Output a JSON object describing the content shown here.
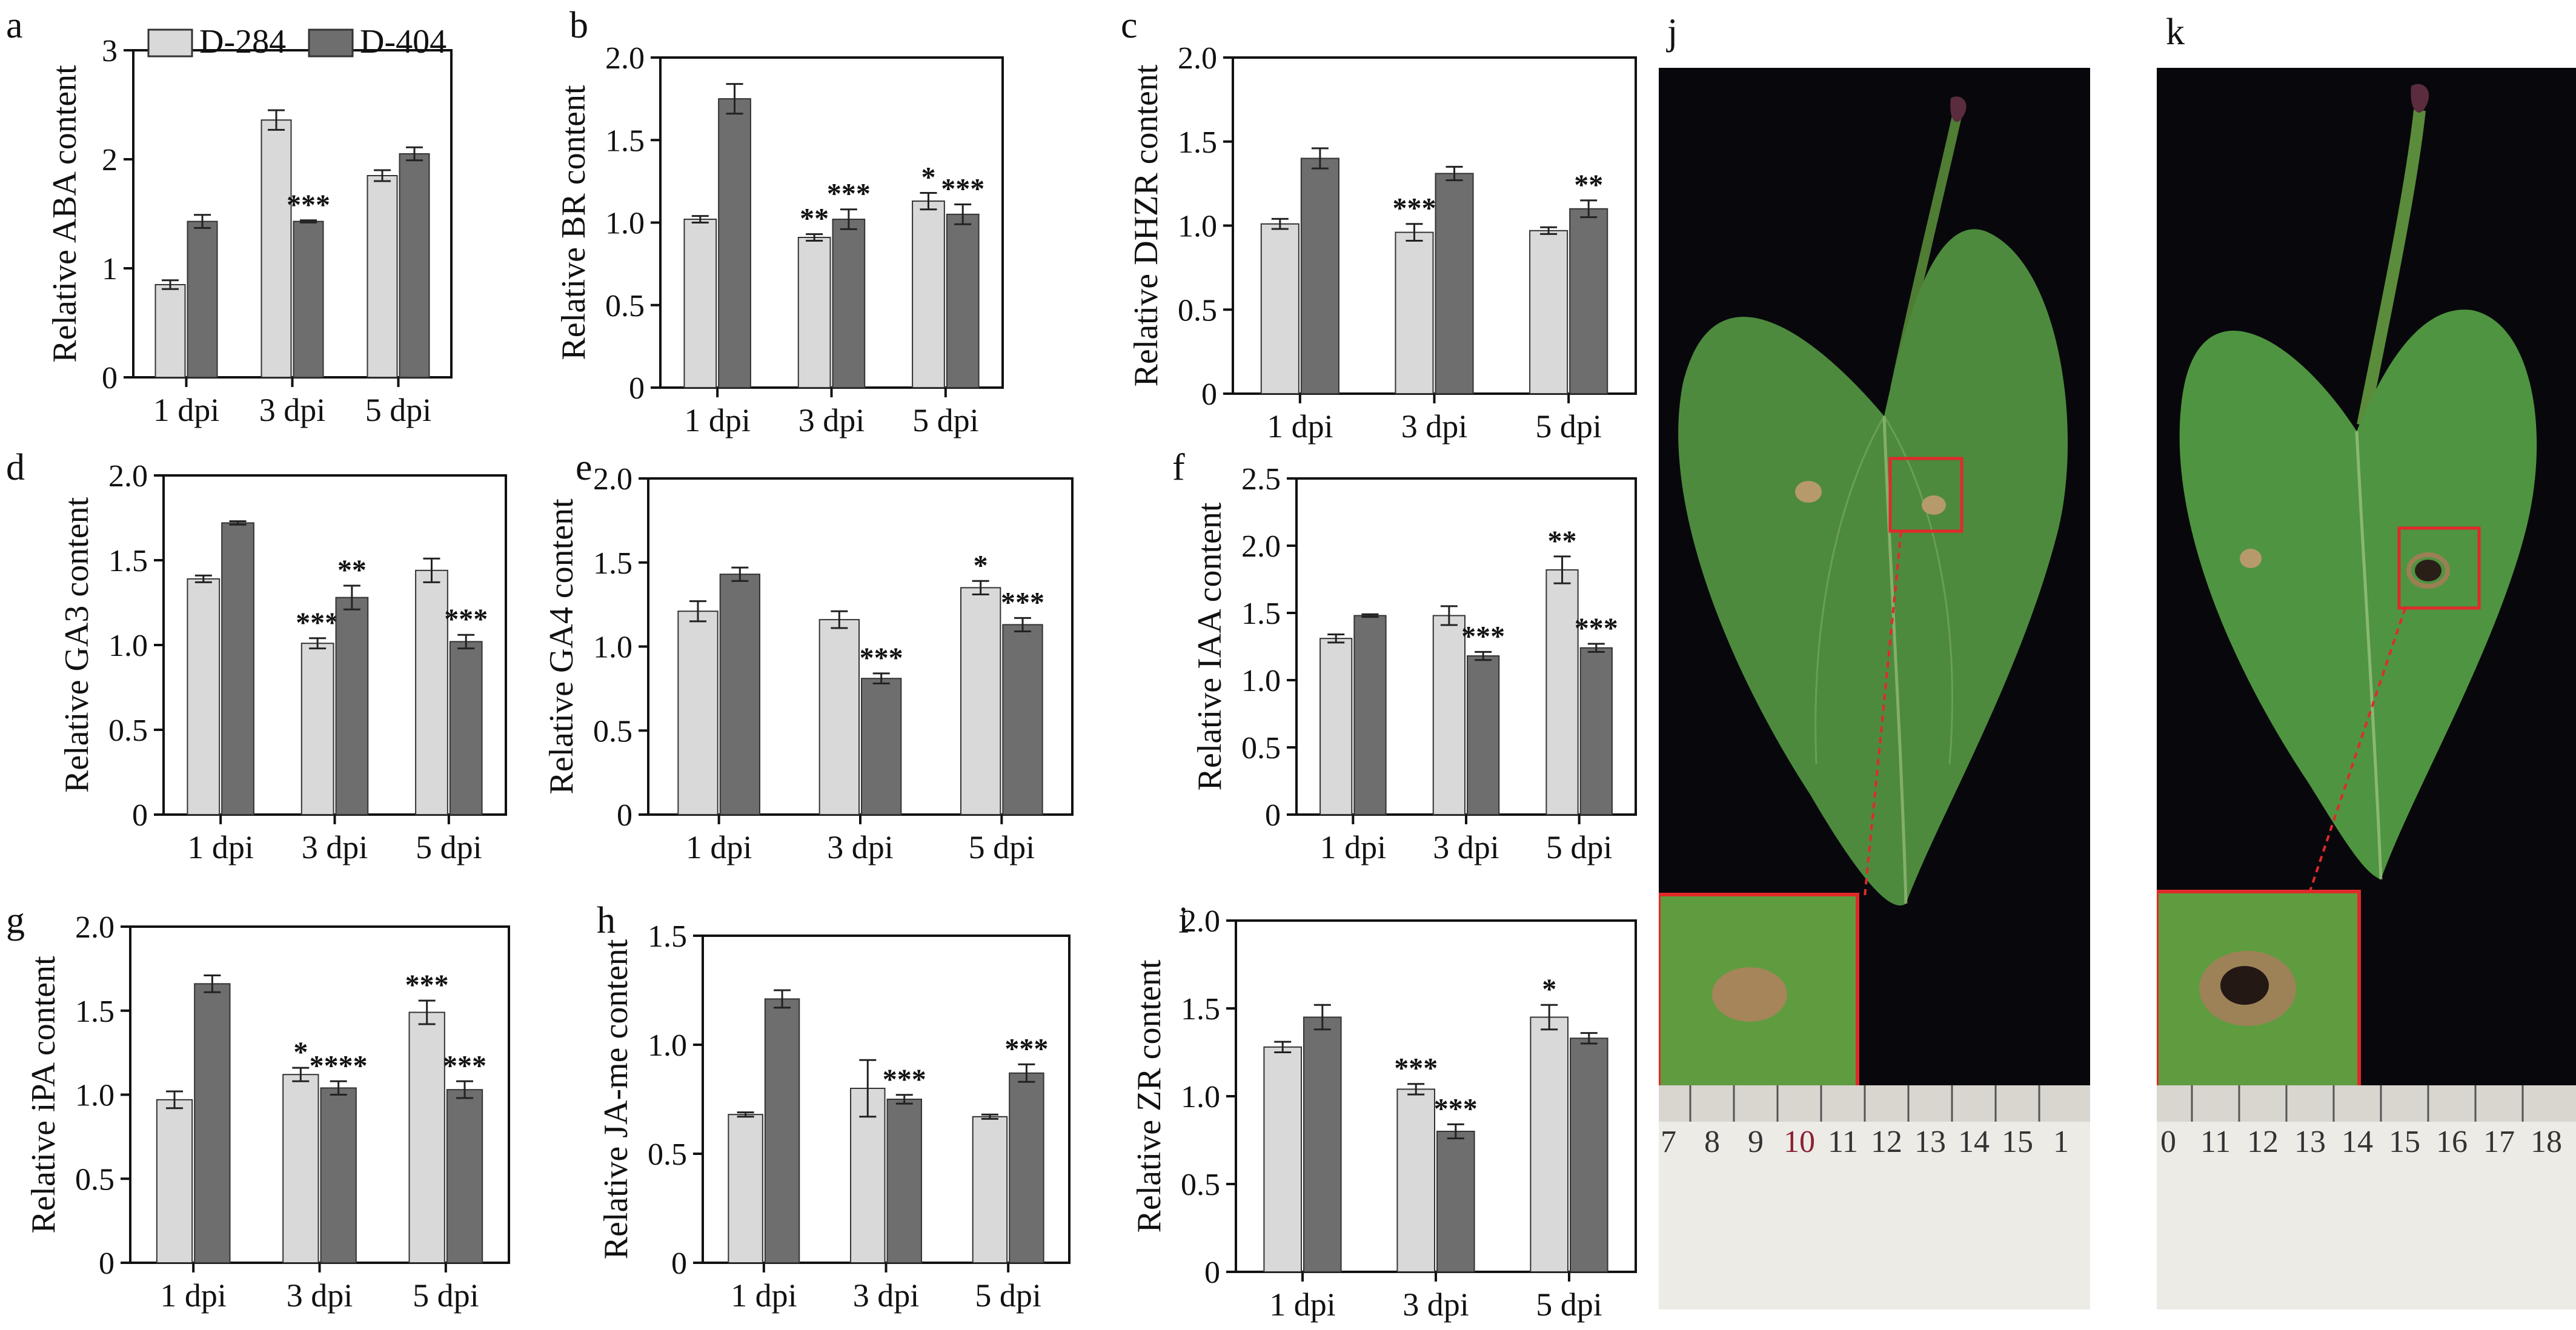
{
  "figure": {
    "legend": [
      {
        "name": "D-284",
        "color": "#d9d9d9"
      },
      {
        "name": "D-404",
        "color": "#6e6e6e"
      }
    ],
    "colors": {
      "d284": "#d9d9d9",
      "d404": "#6e6e6e",
      "axis": "#111111",
      "photo_bg": "#08080c",
      "leaf": "#4d8a3e",
      "frame": "#e02a2a"
    }
  },
  "chart_data": [
    {
      "panel": "a",
      "type": "bar",
      "categories": [
        "1 dpi",
        "3 dpi",
        "5 dpi"
      ],
      "ylabel": "Relative ABA content",
      "ylim": [
        0,
        3
      ],
      "yticks": [
        "0",
        "1",
        "2",
        "3"
      ],
      "yticks_values": [
        0,
        1,
        2,
        3
      ],
      "series": [
        {
          "name": "D-284",
          "values": [
            0.85,
            2.36,
            1.85
          ],
          "errors": [
            0.04,
            0.09,
            0.05
          ]
        },
        {
          "name": "D-404",
          "values": [
            1.43,
            1.43,
            2.05
          ],
          "errors": [
            0.06,
            0.01,
            0.06
          ]
        }
      ],
      "annotations": [
        [
          "",
          "",
          ""
        ],
        [
          "",
          "***",
          "***"
        ],
        [
          "",
          "",
          "***"
        ]
      ],
      "legend": true
    },
    {
      "panel": "b",
      "type": "bar",
      "categories": [
        "1 dpi",
        "3 dpi",
        "5 dpi"
      ],
      "ylabel": "Relative BR content",
      "ylim": [
        0,
        2
      ],
      "yticks": [
        "0",
        "0.5",
        "1.0",
        "1.5",
        "2.0"
      ],
      "yticks_values": [
        0,
        0.5,
        1,
        1.5,
        2
      ],
      "series": [
        {
          "name": "D-284",
          "values": [
            1.02,
            0.91,
            1.13
          ],
          "errors": [
            0.02,
            0.02,
            0.05
          ]
        },
        {
          "name": "D-404",
          "values": [
            1.75,
            1.02,
            1.05
          ],
          "errors": [
            0.09,
            0.06,
            0.06
          ]
        }
      ],
      "annotations": [
        [
          "",
          ""
        ],
        [
          "**",
          "***"
        ],
        [
          "*",
          "***"
        ]
      ]
    },
    {
      "panel": "c",
      "type": "bar",
      "categories": [
        "1 dpi",
        "3 dpi",
        "5 dpi"
      ],
      "ylabel": "Relative DHZR content",
      "ylim": [
        0,
        2
      ],
      "yticks": [
        "0",
        "0.5",
        "1.0",
        "1.5",
        "2.0"
      ],
      "yticks_values": [
        0,
        0.5,
        1,
        1.5,
        2
      ],
      "series": [
        {
          "name": "D-284",
          "values": [
            1.01,
            0.96,
            0.97
          ],
          "errors": [
            0.03,
            0.05,
            0.02
          ]
        },
        {
          "name": "D-404",
          "values": [
            1.4,
            1.31,
            1.1
          ],
          "errors": [
            0.06,
            0.04,
            0.05
          ]
        }
      ],
      "annotations": [
        [
          "",
          ""
        ],
        [
          "***",
          ""
        ],
        [
          "",
          "**"
        ]
      ]
    },
    {
      "panel": "d",
      "type": "bar",
      "categories": [
        "1 dpi",
        "3 dpi",
        "5 dpi"
      ],
      "ylabel": "Relative GA3 content",
      "ylim": [
        0,
        2
      ],
      "yticks": [
        "0",
        "0.5",
        "1.0",
        "1.5",
        "2.0"
      ],
      "yticks_values": [
        0,
        0.5,
        1,
        1.5,
        2
      ],
      "series": [
        {
          "name": "D-284",
          "values": [
            1.39,
            1.01,
            1.44
          ],
          "errors": [
            0.02,
            0.03,
            0.07
          ]
        },
        {
          "name": "D-404",
          "values": [
            1.72,
            1.28,
            1.02
          ],
          "errors": [
            0.01,
            0.07,
            0.04
          ]
        }
      ],
      "annotations": [
        [
          "",
          ""
        ],
        [
          "***",
          "**"
        ],
        [
          "",
          "***"
        ]
      ]
    },
    {
      "panel": "e",
      "type": "bar",
      "categories": [
        "1 dpi",
        "3 dpi",
        "5 dpi"
      ],
      "ylabel": "Relative GA4 content",
      "ylim": [
        0,
        2
      ],
      "yticks": [
        "0",
        "0.5",
        "1.0",
        "1.5",
        "2.0"
      ],
      "yticks_values": [
        0,
        0.5,
        1,
        1.5,
        2
      ],
      "series": [
        {
          "name": "D-284",
          "values": [
            1.21,
            1.16,
            1.35
          ],
          "errors": [
            0.06,
            0.05,
            0.04
          ]
        },
        {
          "name": "D-404",
          "values": [
            1.43,
            0.81,
            1.13
          ],
          "errors": [
            0.04,
            0.03,
            0.04
          ]
        }
      ],
      "annotations": [
        [
          "",
          ""
        ],
        [
          "",
          "***"
        ],
        [
          "*",
          "***"
        ]
      ]
    },
    {
      "panel": "f",
      "type": "bar",
      "categories": [
        "1 dpi",
        "3 dpi",
        "5 dpi"
      ],
      "ylabel": "Relative IAA content",
      "ylim": [
        0,
        2.5
      ],
      "yticks": [
        "0",
        "0.5",
        "1.0",
        "1.5",
        "2.0",
        "2.5"
      ],
      "yticks_values": [
        0,
        0.5,
        1,
        1.5,
        2,
        2.5
      ],
      "series": [
        {
          "name": "D-284",
          "values": [
            1.31,
            1.48,
            1.82
          ],
          "errors": [
            0.03,
            0.07,
            0.1
          ]
        },
        {
          "name": "D-404",
          "values": [
            1.48,
            1.18,
            1.24
          ],
          "errors": [
            0.01,
            0.03,
            0.03
          ]
        }
      ],
      "annotations": [
        [
          "",
          ""
        ],
        [
          "",
          "***"
        ],
        [
          "**",
          "***"
        ]
      ]
    },
    {
      "panel": "g",
      "type": "bar",
      "categories": [
        "1 dpi",
        "3 dpi",
        "5 dpi"
      ],
      "ylabel": "Relative iPA content",
      "ylim": [
        0,
        2
      ],
      "yticks": [
        "0",
        "0.5",
        "1.0",
        "1.5",
        "2.0"
      ],
      "yticks_values": [
        0,
        0.5,
        1,
        1.5,
        2
      ],
      "series": [
        {
          "name": "D-284",
          "values": [
            0.97,
            1.12,
            1.49
          ],
          "errors": [
            0.05,
            0.04,
            0.07
          ]
        },
        {
          "name": "D-404",
          "values": [
            1.66,
            1.04,
            1.03
          ],
          "errors": [
            0.05,
            0.04,
            0.05
          ]
        }
      ],
      "annotations": [
        [
          "",
          ""
        ],
        [
          "*",
          "****"
        ],
        [
          "***",
          "***"
        ]
      ]
    },
    {
      "panel": "h",
      "type": "bar",
      "categories": [
        "1 dpi",
        "3 dpi",
        "5 dpi"
      ],
      "ylabel": "Relative JA-me content",
      "ylim": [
        0,
        1.5
      ],
      "yticks": [
        "0",
        "0.5",
        "1.0",
        "1.5"
      ],
      "yticks_values": [
        0,
        0.5,
        1,
        1.5
      ],
      "series": [
        {
          "name": "D-284",
          "values": [
            0.68,
            0.8,
            0.67
          ],
          "errors": [
            0.01,
            0.13,
            0.01
          ]
        },
        {
          "name": "D-404",
          "values": [
            1.21,
            0.75,
            0.87
          ],
          "errors": [
            0.04,
            0.02,
            0.04
          ]
        }
      ],
      "annotations": [
        [
          "",
          ""
        ],
        [
          "",
          "***"
        ],
        [
          "",
          "***"
        ]
      ]
    },
    {
      "panel": "i",
      "type": "bar",
      "categories": [
        "1 dpi",
        "3 dpi",
        "5 dpi"
      ],
      "ylabel": "Relative ZR content",
      "ylim": [
        0,
        2
      ],
      "yticks": [
        "0",
        "0.5",
        "1.0",
        "1.5",
        "2.0"
      ],
      "yticks_values": [
        0,
        0.5,
        1,
        1.5,
        2
      ],
      "series": [
        {
          "name": "D-284",
          "values": [
            1.28,
            1.04,
            1.45
          ],
          "errors": [
            0.03,
            0.03,
            0.07
          ]
        },
        {
          "name": "D-404",
          "values": [
            1.45,
            0.8,
            1.33
          ],
          "errors": [
            0.07,
            0.04,
            0.03
          ]
        }
      ],
      "annotations": [
        [
          "",
          ""
        ],
        [
          "***",
          "***"
        ],
        [
          "*",
          ""
        ]
      ]
    }
  ],
  "photos": [
    {
      "panel": "j",
      "ruler_labels": [
        "7",
        "8",
        "9",
        "10",
        "11",
        "12",
        "13",
        "14",
        "15",
        "1"
      ]
    },
    {
      "panel": "k",
      "ruler_labels": [
        "0",
        "11",
        "12",
        "13",
        "14",
        "15",
        "16",
        "17",
        "18"
      ]
    }
  ]
}
